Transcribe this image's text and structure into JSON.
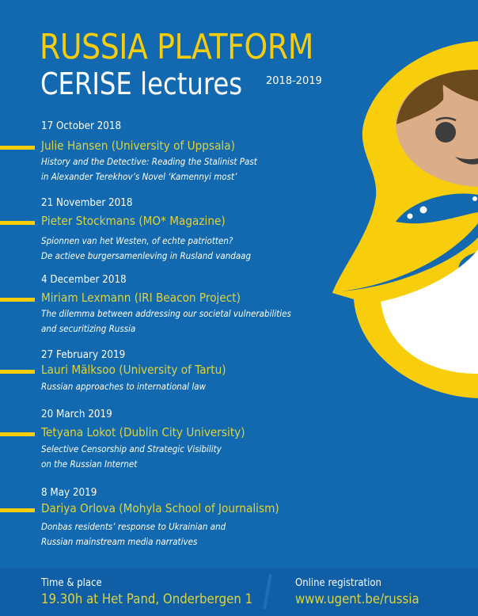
{
  "header": {
    "title": "RUSSIA PLATFORM",
    "subtitle": "CERISE lectures",
    "years": "2018-2019"
  },
  "lectures": [
    {
      "date": "17 October 2018",
      "speaker": "Julie Hansen (University of Uppsala)",
      "lines": [
        "History and the Detective: Reading the Stalinist Past",
        "in Alexander Terekhov’s Novel ‘Kamennyi most’"
      ]
    },
    {
      "date": "21 November 2018",
      "speaker": "Pieter Stockmans (MO* Magazine)",
      "lines": [
        "Spionnen van het Westen, of echte patriotten?",
        "De actieve burgersamenleving in Rusland vandaag"
      ]
    },
    {
      "date": "4 December 2018",
      "speaker": "Miriam Lexmann (IRI Beacon Project)",
      "lines": [
        "The dilemma between addressing our societal vulnerabilities",
        "and securitizing Russia"
      ]
    },
    {
      "date": "27 February 2019",
      "speaker": "Lauri Mälksoo (University of Tartu)",
      "lines": [
        "Russian approaches to international law"
      ]
    },
    {
      "date": "20 March 2019",
      "speaker": "Tetyana Lokot (Dublin City University)",
      "lines": [
        "Selective Censorship and Strategic Visibility",
        "on the Russian Internet"
      ]
    },
    {
      "date": "8 May 2019",
      "speaker": "Dariya Orlova (Mohyla School of Journalism)",
      "lines": [
        "Donbas residents’ response to Ukrainian and",
        "Russian mainstream media narratives"
      ]
    }
  ],
  "footer": {
    "time_label": "Time & place",
    "time_value": "19.30h at Het Pand, Onderbergen 1",
    "registration_label": "Online registration",
    "registration_link": "www.ugent.be/russia"
  },
  "colors": {
    "background": "#1269b0",
    "accent_yellow": "#f6cd0a",
    "name_yellow": "#dcd43c",
    "footer": "#0f5ea6"
  }
}
